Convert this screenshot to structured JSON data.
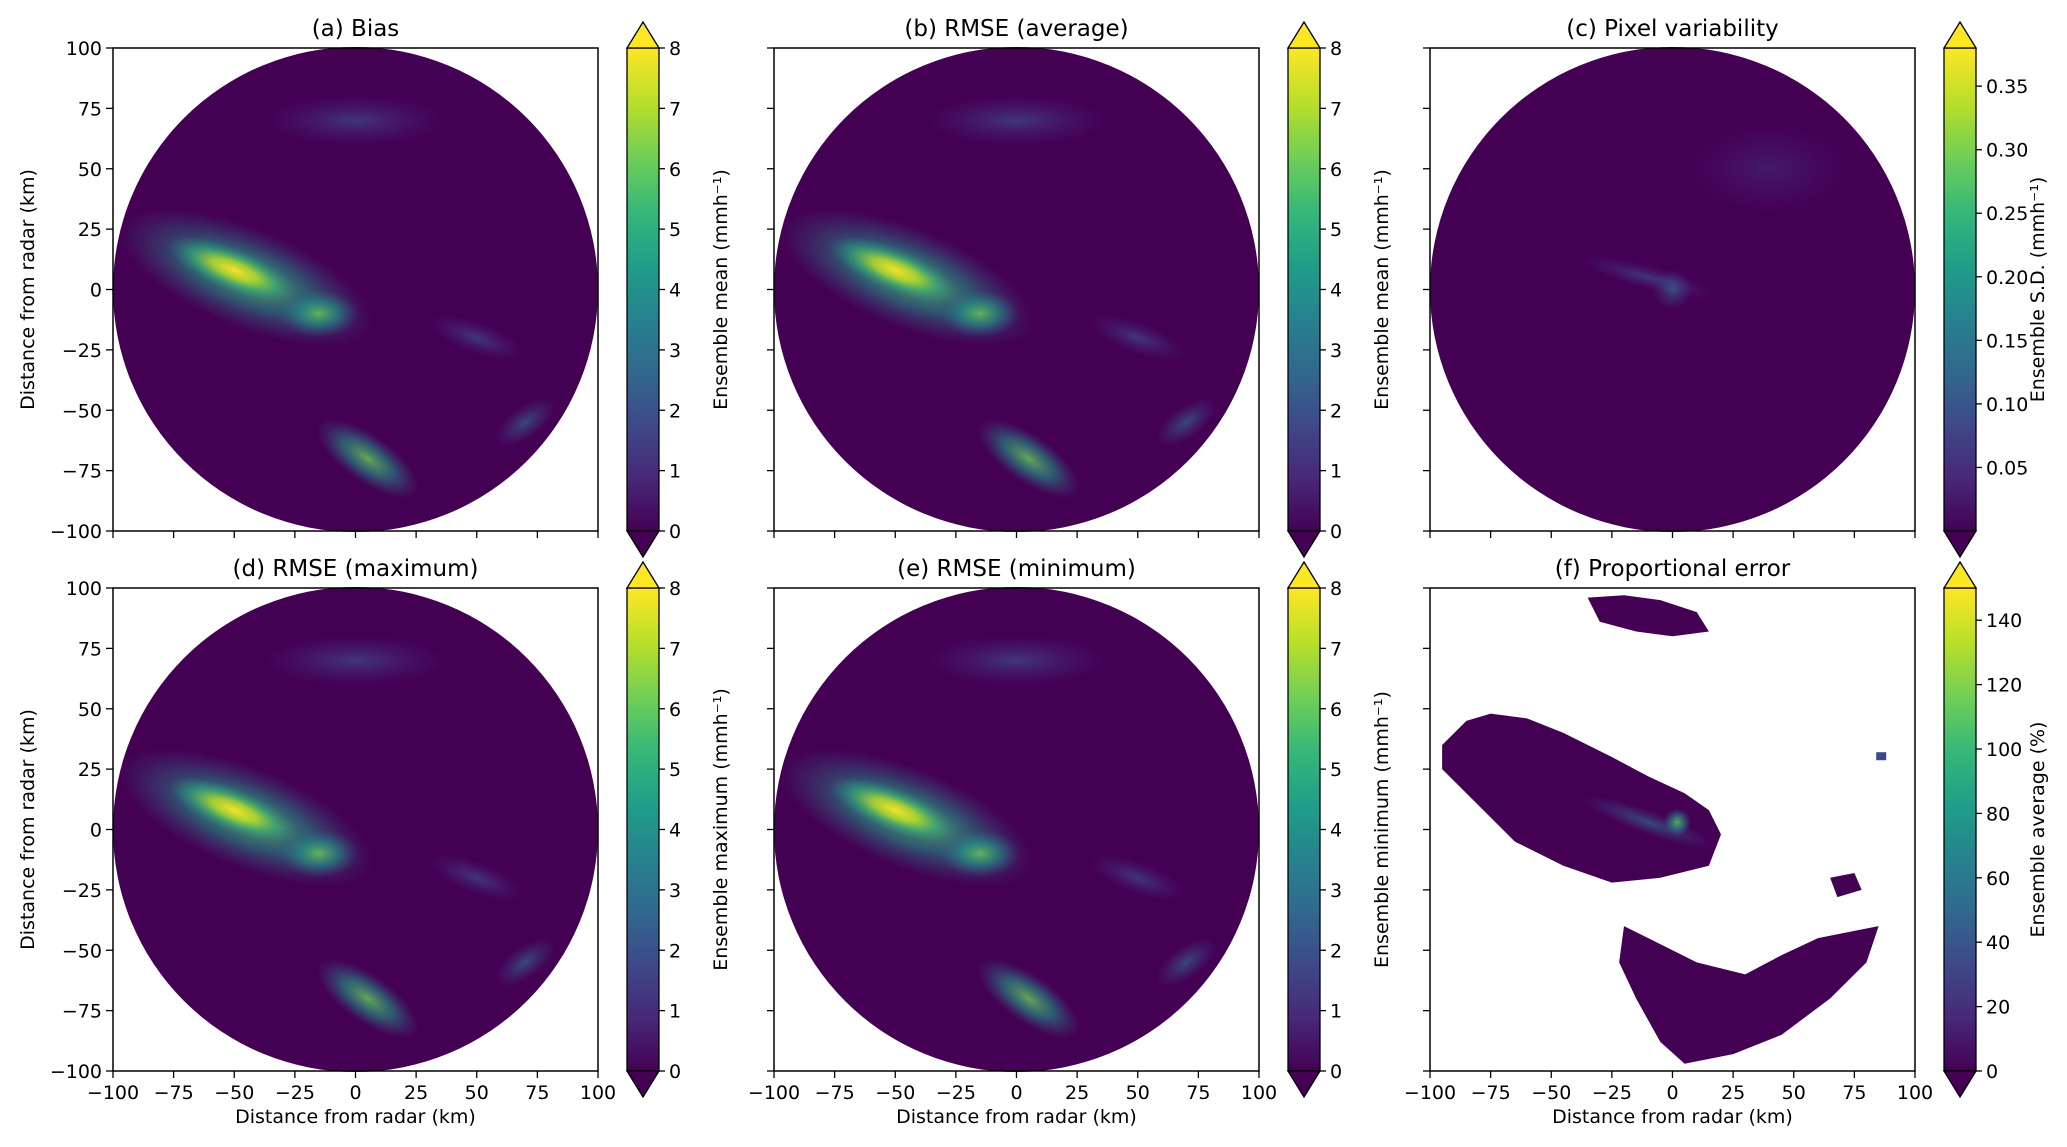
{
  "chart_data": [
    {
      "type": "heatmap",
      "panel": "a",
      "title": "(a) Bias",
      "xlabel": "",
      "ylabel": "Distance from radar (km)",
      "xlim": [
        -100,
        100
      ],
      "ylim": [
        -100,
        100
      ],
      "xticks": [],
      "yticks": [
        "−100",
        "−75",
        "−50",
        "−25",
        "0",
        "25",
        "50",
        "75",
        "100"
      ],
      "field": "circle",
      "colorbar": {
        "label": "Ensemble mean (mmh⁻¹)",
        "range": [
          0,
          8
        ],
        "ticks": [
          "0",
          "1",
          "2",
          "3",
          "4",
          "5",
          "6",
          "7",
          "8"
        ],
        "extend": "both"
      }
    },
    {
      "type": "heatmap",
      "panel": "b",
      "title": "(b) RMSE (average)",
      "xlabel": "",
      "ylabel": "",
      "xlim": [
        -100,
        100
      ],
      "ylim": [
        -100,
        100
      ],
      "xticks": [],
      "yticks": [],
      "field": "circle",
      "colorbar": {
        "label": "Ensemble mean (mmh⁻¹)",
        "range": [
          0,
          8
        ],
        "ticks": [
          "0",
          "1",
          "2",
          "3",
          "4",
          "5",
          "6",
          "7",
          "8"
        ],
        "extend": "both"
      }
    },
    {
      "type": "heatmap",
      "panel": "c",
      "title": "(c) Pixel variability",
      "xlabel": "",
      "ylabel": "",
      "xlim": [
        -100,
        100
      ],
      "ylim": [
        -100,
        100
      ],
      "xticks": [],
      "yticks": [],
      "field": "circle-dark",
      "colorbar": {
        "label": "Ensemble S.D. (mmh⁻¹)",
        "range": [
          0,
          0.38
        ],
        "ticks": [
          "0.05",
          "0.10",
          "0.15",
          "0.20",
          "0.25",
          "0.30",
          "0.35"
        ],
        "extend": "both"
      }
    },
    {
      "type": "heatmap",
      "panel": "d",
      "title": "(d) RMSE (maximum)",
      "xlabel": "Distance from radar (km)",
      "ylabel": "Distance from radar (km)",
      "xlim": [
        -100,
        100
      ],
      "ylim": [
        -100,
        100
      ],
      "xticks": [
        "−100",
        "−75",
        "−50",
        "−25",
        "0",
        "25",
        "50",
        "75",
        "100"
      ],
      "yticks": [
        "−100",
        "−75",
        "−50",
        "−25",
        "0",
        "25",
        "50",
        "75",
        "100"
      ],
      "field": "circle",
      "colorbar": {
        "label": "Ensemble maximum (mmh⁻¹)",
        "range": [
          0,
          8
        ],
        "ticks": [
          "0",
          "1",
          "2",
          "3",
          "4",
          "5",
          "6",
          "7",
          "8"
        ],
        "extend": "both"
      }
    },
    {
      "type": "heatmap",
      "panel": "e",
      "title": "(e) RMSE (minimum)",
      "xlabel": "Distance from radar (km)",
      "ylabel": "",
      "xlim": [
        -100,
        100
      ],
      "ylim": [
        -100,
        100
      ],
      "xticks": [
        "−100",
        "−75",
        "−50",
        "−25",
        "0",
        "25",
        "50",
        "75",
        "100"
      ],
      "yticks": [],
      "field": "circle",
      "colorbar": {
        "label": "Ensemble minimum (mmh⁻¹)",
        "range": [
          0,
          8
        ],
        "ticks": [
          "0",
          "1",
          "2",
          "3",
          "4",
          "5",
          "6",
          "7",
          "8"
        ],
        "extend": "both"
      }
    },
    {
      "type": "heatmap",
      "panel": "f",
      "title": "(f) Proportional error",
      "xlabel": "Distance from radar (km)",
      "ylabel": "",
      "xlim": [
        -100,
        100
      ],
      "ylim": [
        -100,
        100
      ],
      "xticks": [
        "−100",
        "−75",
        "−50",
        "−25",
        "0",
        "25",
        "50",
        "75",
        "100"
      ],
      "yticks": [],
      "field": "patches",
      "colorbar": {
        "label": "Ensemble average (%)",
        "range": [
          0,
          150
        ],
        "ticks": [
          "0",
          "20",
          "40",
          "60",
          "80",
          "100",
          "120",
          "140"
        ],
        "extend": "both"
      }
    }
  ],
  "colors": {
    "background_field": "#440154",
    "viridis": [
      "#440154",
      "#482878",
      "#3e4989",
      "#31688e",
      "#26828e",
      "#1f9e89",
      "#35b779",
      "#6ece58",
      "#b5de2b",
      "#fde725"
    ]
  }
}
